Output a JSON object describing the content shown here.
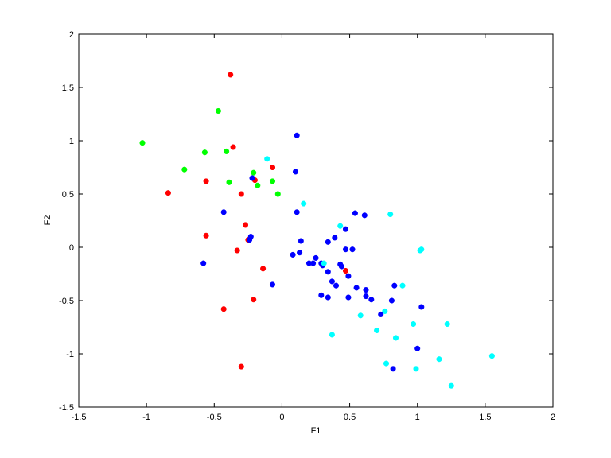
{
  "chart_data": {
    "type": "scatter",
    "title": "",
    "xlabel": "F1",
    "ylabel": "F2",
    "xlim": [
      -1.5,
      2
    ],
    "ylim": [
      -1.5,
      2
    ],
    "xticks": [
      -1.5,
      -1,
      -0.5,
      0,
      0.5,
      1,
      1.5,
      2
    ],
    "yticks": [
      -1.5,
      -1,
      -0.5,
      0,
      0.5,
      1,
      1.5,
      2
    ],
    "xtick_labels": [
      "-1.5",
      "-1",
      "-0.5",
      "0",
      "0.5",
      "1",
      "1.5",
      "2"
    ],
    "ytick_labels": [
      "-1.5",
      "-1",
      "-0.5",
      "0",
      "0.5",
      "1",
      "1.5",
      "2"
    ],
    "grid": false,
    "legend": "none",
    "series": [
      {
        "color": "#ff0000",
        "points": [
          [
            -0.38,
            1.62
          ],
          [
            -0.36,
            0.94
          ],
          [
            -0.84,
            0.51
          ],
          [
            -0.56,
            0.62
          ],
          [
            -0.3,
            0.5
          ],
          [
            -0.2,
            0.63
          ],
          [
            -0.07,
            0.75
          ],
          [
            -0.56,
            0.11
          ],
          [
            -0.27,
            0.21
          ],
          [
            -0.25,
            0.07
          ],
          [
            -0.33,
            -0.03
          ],
          [
            -0.14,
            -0.2
          ],
          [
            -0.21,
            -0.49
          ],
          [
            -0.43,
            -0.58
          ],
          [
            -0.3,
            -1.12
          ],
          [
            0.47,
            -0.22
          ]
        ]
      },
      {
        "color": "#00ff00",
        "points": [
          [
            -1.03,
            0.98
          ],
          [
            -0.47,
            1.28
          ],
          [
            -0.57,
            0.89
          ],
          [
            -0.41,
            0.9
          ],
          [
            -0.72,
            0.73
          ],
          [
            -0.39,
            0.61
          ],
          [
            -0.21,
            0.7
          ],
          [
            -0.18,
            0.58
          ],
          [
            -0.07,
            0.62
          ],
          [
            -0.03,
            0.5
          ]
        ]
      },
      {
        "color": "#0000ff",
        "points": [
          [
            0.11,
            1.05
          ],
          [
            0.1,
            0.71
          ],
          [
            -0.22,
            0.65
          ],
          [
            -0.43,
            0.33
          ],
          [
            0.11,
            0.33
          ],
          [
            0.54,
            0.32
          ],
          [
            0.61,
            0.3
          ],
          [
            0.47,
            0.17
          ],
          [
            -0.23,
            0.1
          ],
          [
            -0.24,
            0.07
          ],
          [
            0.14,
            0.06
          ],
          [
            0.34,
            0.05
          ],
          [
            0.39,
            0.09
          ],
          [
            0.47,
            -0.02
          ],
          [
            0.52,
            -0.02
          ],
          [
            0.13,
            -0.05
          ],
          [
            0.08,
            -0.07
          ],
          [
            0.25,
            -0.1
          ],
          [
            0.2,
            -0.15
          ],
          [
            0.23,
            -0.15
          ],
          [
            0.29,
            -0.15
          ],
          [
            0.3,
            -0.17
          ],
          [
            0.43,
            -0.16
          ],
          [
            0.44,
            -0.18
          ],
          [
            0.34,
            -0.23
          ],
          [
            -0.58,
            -0.15
          ],
          [
            -0.07,
            -0.35
          ],
          [
            0.37,
            -0.32
          ],
          [
            0.49,
            -0.27
          ],
          [
            0.4,
            -0.36
          ],
          [
            0.55,
            -0.38
          ],
          [
            0.62,
            -0.4
          ],
          [
            0.83,
            -0.36
          ],
          [
            0.29,
            -0.45
          ],
          [
            0.34,
            -0.47
          ],
          [
            0.49,
            -0.47
          ],
          [
            0.62,
            -0.46
          ],
          [
            0.66,
            -0.49
          ],
          [
            0.81,
            -0.5
          ],
          [
            1.03,
            -0.56
          ],
          [
            0.73,
            -0.63
          ],
          [
            1.0,
            -0.95
          ],
          [
            0.82,
            -1.14
          ]
        ]
      },
      {
        "color": "#00ffff",
        "points": [
          [
            -0.11,
            0.83
          ],
          [
            0.16,
            0.41
          ],
          [
            0.43,
            0.2
          ],
          [
            0.8,
            0.31
          ],
          [
            1.02,
            -0.03
          ],
          [
            1.03,
            -0.02
          ],
          [
            0.31,
            -0.15
          ],
          [
            0.89,
            -0.36
          ],
          [
            0.58,
            -0.64
          ],
          [
            0.76,
            -0.6
          ],
          [
            0.97,
            -0.72
          ],
          [
            1.22,
            -0.72
          ],
          [
            0.37,
            -0.82
          ],
          [
            0.7,
            -0.78
          ],
          [
            0.84,
            -0.85
          ],
          [
            1.16,
            -1.05
          ],
          [
            0.77,
            -1.09
          ],
          [
            0.99,
            -1.14
          ],
          [
            1.55,
            -1.02
          ],
          [
            1.25,
            -1.3
          ]
        ]
      }
    ]
  }
}
